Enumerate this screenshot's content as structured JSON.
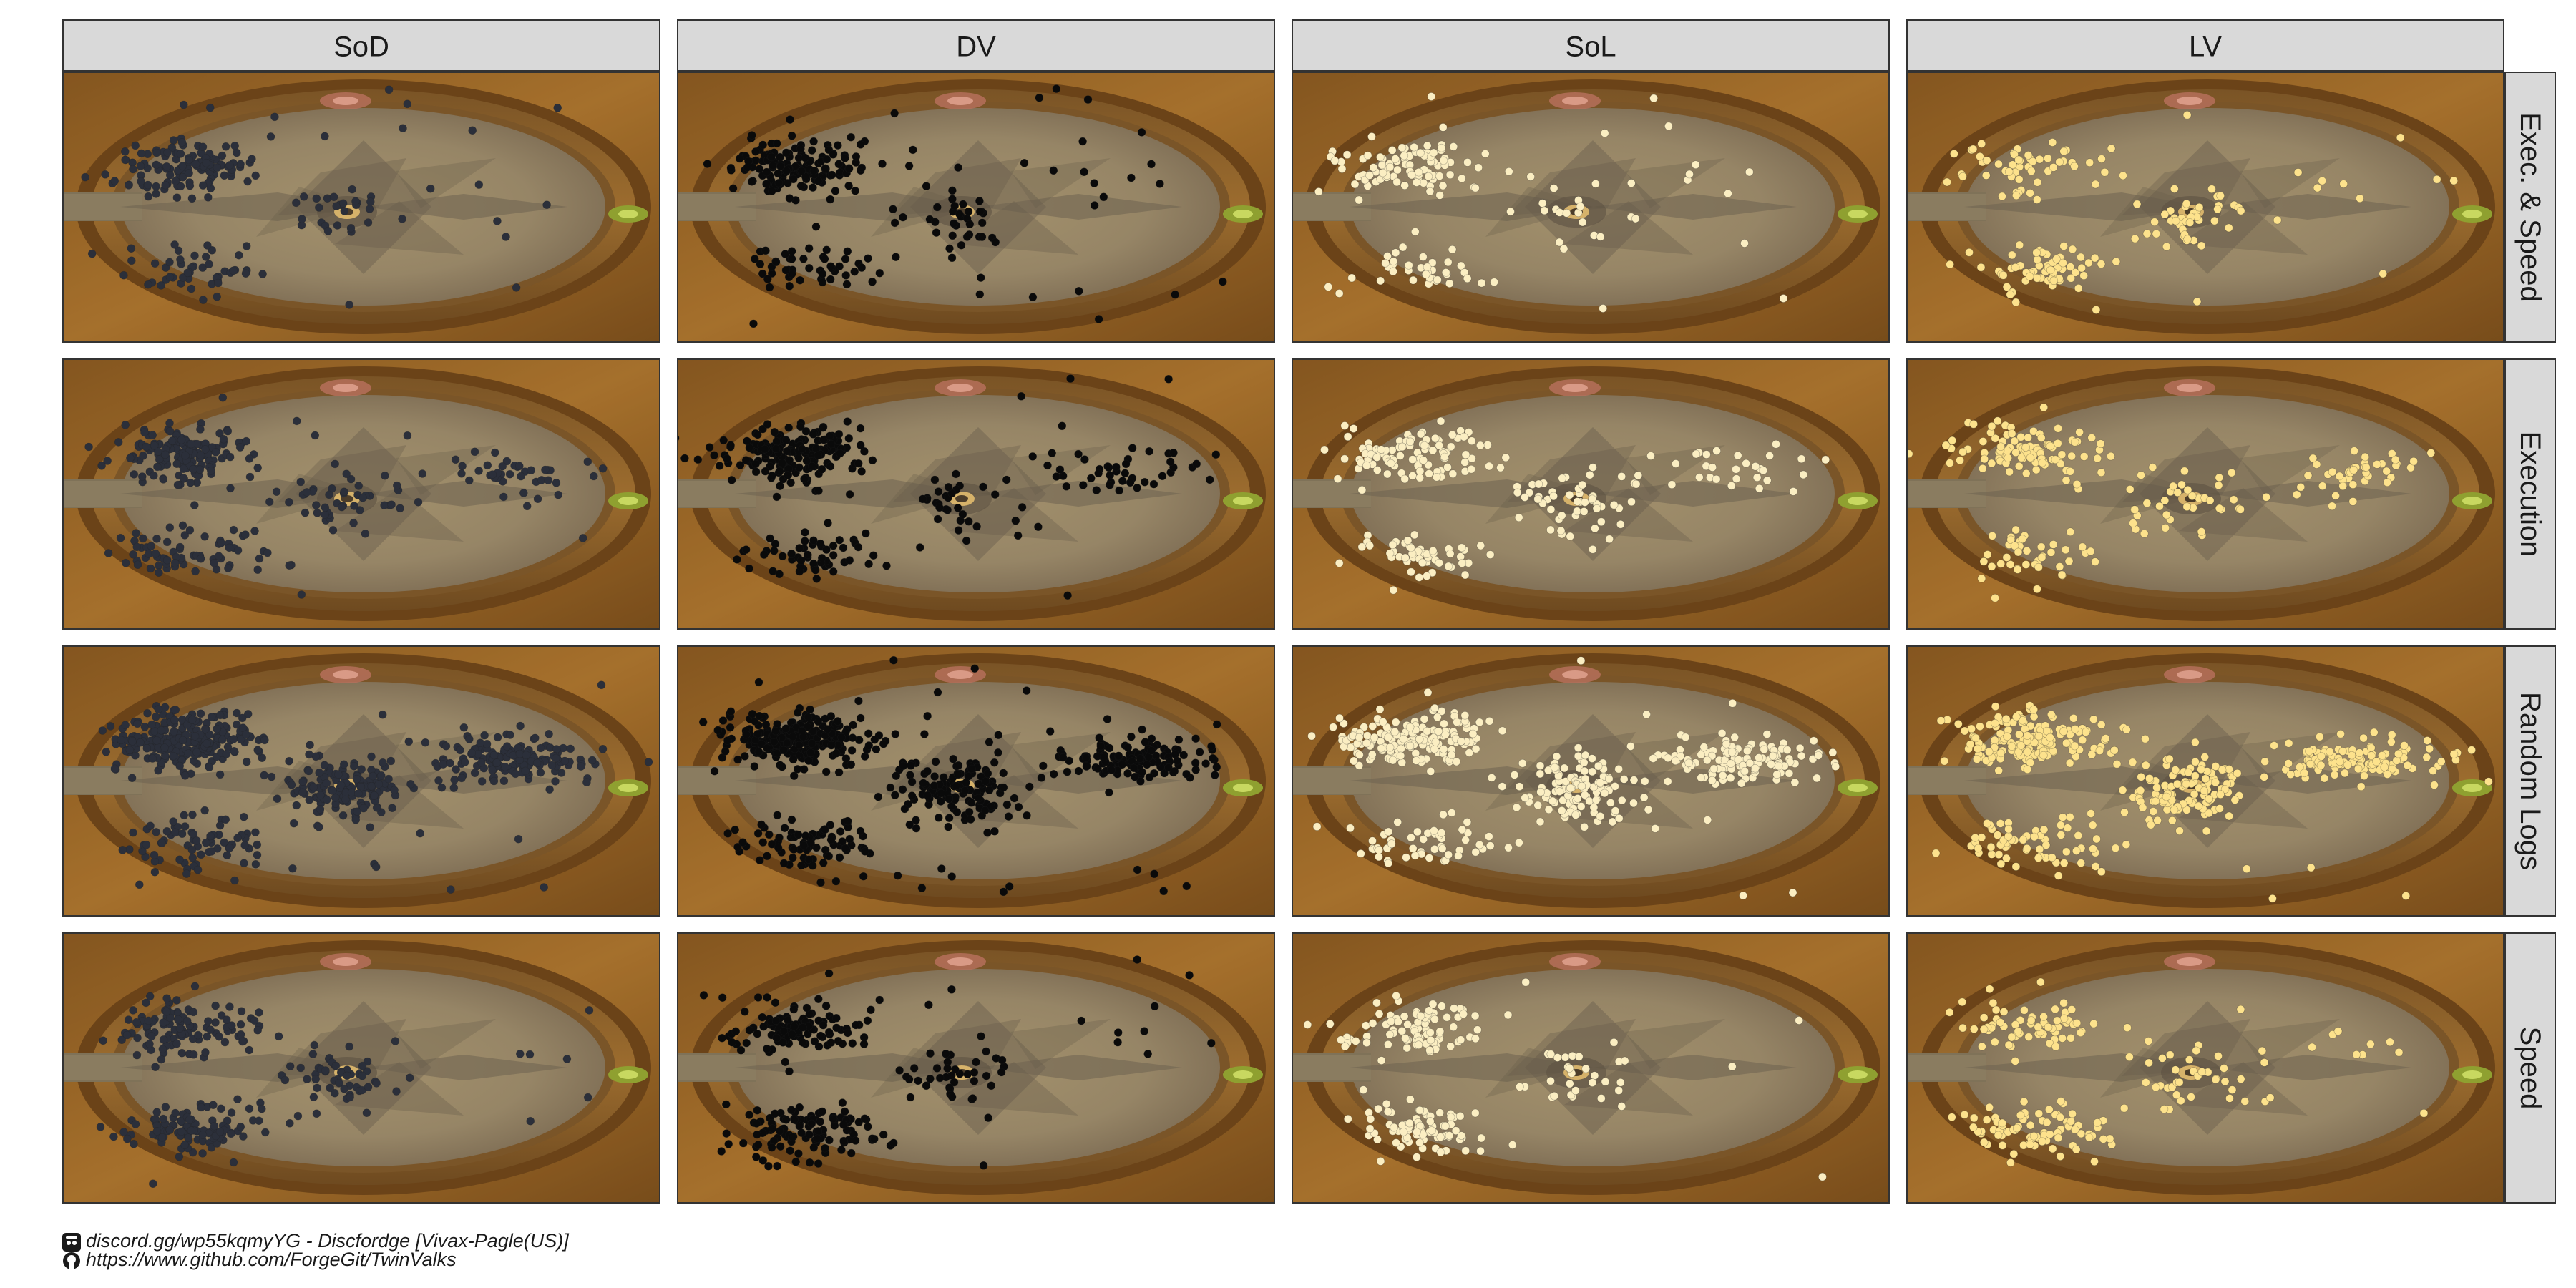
{
  "chart_data": {
    "type": "scatter",
    "columns": [
      "SoD",
      "DV",
      "SoL",
      "LV"
    ],
    "rows": [
      "Exec. & Speed",
      "Execution",
      "Random Logs",
      "Speed"
    ],
    "x_axis_shown": false,
    "y_axis_shown": false,
    "grid": false,
    "legend": "none",
    "background": "arena-floor-map",
    "colors": {
      "SoD": "#2b2f3a",
      "DV": "#0a0a0a",
      "SoL": "#fbeec2",
      "LV": "#fde28c"
    },
    "point_groups": [
      {
        "name": "left-upper-cluster",
        "x": 0.2,
        "y": 0.65
      },
      {
        "name": "left-lower-cluster",
        "x": 0.22,
        "y": 0.27
      },
      {
        "name": "center-cluster",
        "x": 0.47,
        "y": 0.47
      },
      {
        "name": "right-upper-cluster",
        "x": 0.75,
        "y": 0.58
      }
    ],
    "counts": {
      "Exec. & Speed": [
        220,
        260,
        170,
        170
      ],
      "Execution": [
        320,
        320,
        230,
        230
      ],
      "Random Logs": [
        650,
        650,
        480,
        480
      ],
      "Speed": [
        280,
        280,
        200,
        200
      ]
    },
    "weights": {
      "Exec. & Speed": [
        [
          0.55,
          0.2,
          0.15,
          0.02
        ],
        [
          0.6,
          0.15,
          0.15,
          0.03
        ],
        [
          0.55,
          0.2,
          0.15,
          0.03
        ],
        [
          0.4,
          0.3,
          0.2,
          0.05
        ]
      ],
      "Execution": [
        [
          0.5,
          0.2,
          0.15,
          0.12
        ],
        [
          0.55,
          0.15,
          0.15,
          0.12
        ],
        [
          0.45,
          0.2,
          0.18,
          0.15
        ],
        [
          0.45,
          0.2,
          0.15,
          0.18
        ]
      ],
      "Random Logs": [
        [
          0.42,
          0.1,
          0.22,
          0.22
        ],
        [
          0.42,
          0.1,
          0.22,
          0.22
        ],
        [
          0.35,
          0.12,
          0.25,
          0.25
        ],
        [
          0.35,
          0.12,
          0.25,
          0.25
        ]
      ],
      "Speed": [
        [
          0.38,
          0.38,
          0.18,
          0.01
        ],
        [
          0.42,
          0.38,
          0.15,
          0.02
        ],
        [
          0.4,
          0.38,
          0.18,
          0.02
        ],
        [
          0.38,
          0.38,
          0.18,
          0.03
        ]
      ]
    }
  },
  "caption": {
    "discord_icon": "discord-icon",
    "discord": "discord.gg/wp55kqmyYG - Discfordge [Vivax-Pagle(US)]",
    "github_icon": "github-icon",
    "github": "https://www.github.com/ForgeGit/TwinValks"
  }
}
